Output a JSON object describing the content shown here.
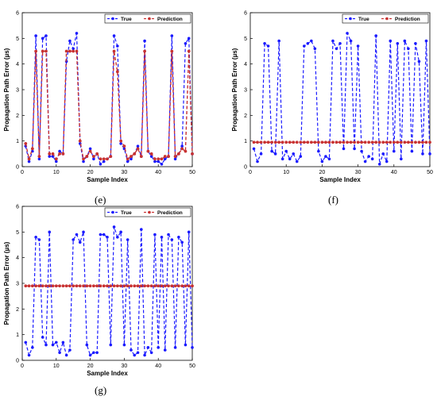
{
  "chart_data": [
    {
      "panel": "(e)",
      "type": "line",
      "xlabel": "Sample Index",
      "ylabel": "Propagation Path Error (µs)",
      "xlim": [
        0,
        50
      ],
      "ylim": [
        0,
        6
      ],
      "xticks": [
        0,
        10,
        20,
        30,
        40,
        50
      ],
      "yticks": [
        0,
        1,
        2,
        3,
        4,
        5,
        6
      ],
      "grid": false,
      "legend_position": "top-right",
      "series": [
        {
          "name": "True",
          "color": "#1a1aff",
          "marker": "circle",
          "x": [
            1,
            2,
            3,
            4,
            5,
            6,
            7,
            8,
            9,
            10,
            11,
            12,
            13,
            14,
            15,
            16,
            17,
            18,
            19,
            20,
            21,
            22,
            23,
            24,
            25,
            26,
            27,
            28,
            29,
            30,
            31,
            32,
            33,
            34,
            35,
            36,
            37,
            38,
            39,
            40,
            41,
            42,
            43,
            44,
            45,
            46,
            47,
            48,
            49,
            50
          ],
          "y": [
            0.8,
            0.2,
            0.6,
            5.1,
            0.3,
            5.0,
            5.1,
            0.4,
            0.4,
            0.2,
            0.6,
            0.5,
            4.1,
            4.9,
            4.6,
            5.2,
            0.9,
            0.2,
            0.4,
            0.7,
            0.3,
            0.5,
            0.1,
            0.2,
            0.3,
            0.4,
            5.1,
            4.7,
            0.9,
            0.7,
            0.2,
            0.3,
            0.5,
            0.8,
            0.4,
            4.9,
            0.6,
            0.4,
            0.2,
            0.2,
            0.1,
            0.3,
            0.4,
            5.1,
            0.3,
            0.5,
            0.8,
            4.8,
            5.0,
            0.5
          ]
        },
        {
          "name": "Prediction",
          "color": "#c83232",
          "marker": "circle",
          "x": [
            1,
            2,
            3,
            4,
            5,
            6,
            7,
            8,
            9,
            10,
            11,
            12,
            13,
            14,
            15,
            16,
            17,
            18,
            19,
            20,
            21,
            22,
            23,
            24,
            25,
            26,
            27,
            28,
            29,
            30,
            31,
            32,
            33,
            34,
            35,
            36,
            37,
            38,
            39,
            40,
            41,
            42,
            43,
            44,
            45,
            46,
            47,
            48,
            49,
            50
          ],
          "y": [
            0.9,
            0.3,
            0.7,
            4.5,
            0.4,
            4.5,
            4.5,
            0.5,
            0.5,
            0.3,
            0.5,
            0.5,
            4.5,
            4.5,
            4.5,
            4.5,
            1.0,
            0.3,
            0.4,
            0.6,
            0.4,
            0.5,
            0.3,
            0.3,
            0.3,
            0.4,
            4.5,
            3.7,
            1.0,
            0.8,
            0.3,
            0.4,
            0.5,
            0.7,
            0.4,
            4.5,
            0.6,
            0.5,
            0.3,
            0.3,
            0.3,
            0.4,
            0.4,
            4.5,
            0.4,
            0.5,
            0.7,
            0.6,
            4.5,
            0.5
          ]
        }
      ]
    },
    {
      "panel": "(f)",
      "type": "line",
      "xlabel": "Sample Index",
      "ylabel": "Propagation Path Error (µs)",
      "xlim": [
        0,
        50
      ],
      "ylim": [
        0,
        6
      ],
      "xticks": [
        0,
        10,
        20,
        30,
        40,
        50
      ],
      "yticks": [
        0,
        1,
        2,
        3,
        4,
        5,
        6
      ],
      "grid": false,
      "legend_position": "top-right",
      "series": [
        {
          "name": "True",
          "color": "#1a1aff",
          "marker": "circle",
          "x": [
            1,
            2,
            3,
            4,
            5,
            6,
            7,
            8,
            9,
            10,
            11,
            12,
            13,
            14,
            15,
            16,
            17,
            18,
            19,
            20,
            21,
            22,
            23,
            24,
            25,
            26,
            27,
            28,
            29,
            30,
            31,
            32,
            33,
            34,
            35,
            36,
            37,
            38,
            39,
            40,
            41,
            42,
            43,
            44,
            45,
            46,
            47,
            48,
            49,
            50
          ],
          "y": [
            0.7,
            0.2,
            0.5,
            4.8,
            4.7,
            0.6,
            0.5,
            4.9,
            0.3,
            0.6,
            0.3,
            0.5,
            0.2,
            0.4,
            4.7,
            4.8,
            4.9,
            4.6,
            0.6,
            0.2,
            0.4,
            0.3,
            4.9,
            4.6,
            4.8,
            0.7,
            5.2,
            4.9,
            0.7,
            4.7,
            0.6,
            0.2,
            0.4,
            0.3,
            5.1,
            0.1,
            0.5,
            0.2,
            4.9,
            0.6,
            4.8,
            0.3,
            4.9,
            4.6,
            0.6,
            4.8,
            4.1,
            0.5,
            4.9,
            0.5
          ]
        },
        {
          "name": "Prediction",
          "color": "#c83232",
          "marker": "circle",
          "x": [
            1,
            2,
            3,
            4,
            5,
            6,
            7,
            8,
            9,
            10,
            11,
            12,
            13,
            14,
            15,
            16,
            17,
            18,
            19,
            20,
            21,
            22,
            23,
            24,
            25,
            26,
            27,
            28,
            29,
            30,
            31,
            32,
            33,
            34,
            35,
            36,
            37,
            38,
            39,
            40,
            41,
            42,
            43,
            44,
            45,
            46,
            47,
            48,
            49,
            50
          ],
          "y": [
            0.95,
            0.95,
            0.95,
            0.95,
            0.95,
            0.95,
            0.95,
            0.95,
            0.95,
            0.95,
            0.95,
            0.95,
            0.95,
            0.95,
            0.95,
            0.95,
            0.95,
            0.95,
            0.95,
            0.95,
            0.95,
            0.95,
            0.95,
            0.95,
            0.95,
            0.95,
            0.95,
            0.95,
            0.95,
            0.95,
            0.95,
            0.95,
            0.95,
            0.95,
            0.95,
            0.95,
            0.95,
            0.95,
            0.95,
            0.95,
            0.95,
            0.95,
            0.95,
            0.95,
            0.95,
            0.95,
            0.95,
            0.95,
            0.95,
            0.95
          ]
        }
      ]
    },
    {
      "panel": "(g)",
      "type": "line",
      "xlabel": "Sample Index",
      "ylabel": "Propagation Path Error (µs)",
      "xlim": [
        0,
        50
      ],
      "ylim": [
        0,
        6
      ],
      "xticks": [
        0,
        10,
        20,
        30,
        40,
        50
      ],
      "yticks": [
        0,
        1,
        2,
        3,
        4,
        5,
        6
      ],
      "grid": false,
      "legend_position": "top-right",
      "series": [
        {
          "name": "True",
          "color": "#1a1aff",
          "marker": "circle",
          "x": [
            1,
            2,
            3,
            4,
            5,
            6,
            7,
            8,
            9,
            10,
            11,
            12,
            13,
            14,
            15,
            16,
            17,
            18,
            19,
            20,
            21,
            22,
            23,
            24,
            25,
            26,
            27,
            28,
            29,
            30,
            31,
            32,
            33,
            34,
            35,
            36,
            37,
            38,
            39,
            40,
            41,
            42,
            43,
            44,
            45,
            46,
            47,
            48,
            49,
            50
          ],
          "y": [
            0.7,
            0.2,
            0.5,
            4.8,
            4.7,
            0.9,
            0.6,
            5.0,
            0.6,
            0.7,
            0.3,
            0.7,
            0.2,
            0.4,
            4.7,
            4.9,
            4.6,
            5.0,
            0.6,
            0.2,
            0.3,
            0.3,
            4.9,
            4.9,
            4.8,
            0.6,
            5.2,
            4.8,
            5.0,
            0.6,
            4.7,
            0.4,
            0.2,
            0.3,
            5.1,
            0.2,
            0.5,
            0.3,
            4.9,
            0.5,
            4.8,
            0.4,
            4.9,
            4.7,
            0.5,
            4.8,
            4.6,
            0.6,
            5.0,
            0.5
          ]
        },
        {
          "name": "Prediction",
          "color": "#c83232",
          "marker": "circle",
          "x": [
            1,
            2,
            3,
            4,
            5,
            6,
            7,
            8,
            9,
            10,
            11,
            12,
            13,
            14,
            15,
            16,
            17,
            18,
            19,
            20,
            21,
            22,
            23,
            24,
            25,
            26,
            27,
            28,
            29,
            30,
            31,
            32,
            33,
            34,
            35,
            36,
            37,
            38,
            39,
            40,
            41,
            42,
            43,
            44,
            45,
            46,
            47,
            48,
            49,
            50
          ],
          "y": [
            2.9,
            2.9,
            2.9,
            2.9,
            2.9,
            2.9,
            2.9,
            2.9,
            2.9,
            2.9,
            2.9,
            2.9,
            2.9,
            2.9,
            2.9,
            2.9,
            2.9,
            2.9,
            2.9,
            2.9,
            2.9,
            2.9,
            2.9,
            2.9,
            2.9,
            2.9,
            2.9,
            2.9,
            2.9,
            2.9,
            2.9,
            2.9,
            2.9,
            2.9,
            2.9,
            2.9,
            2.9,
            2.9,
            2.9,
            2.9,
            2.9,
            2.9,
            2.9,
            2.9,
            2.9,
            2.9,
            2.9,
            2.9,
            2.9,
            2.9
          ]
        }
      ]
    }
  ]
}
